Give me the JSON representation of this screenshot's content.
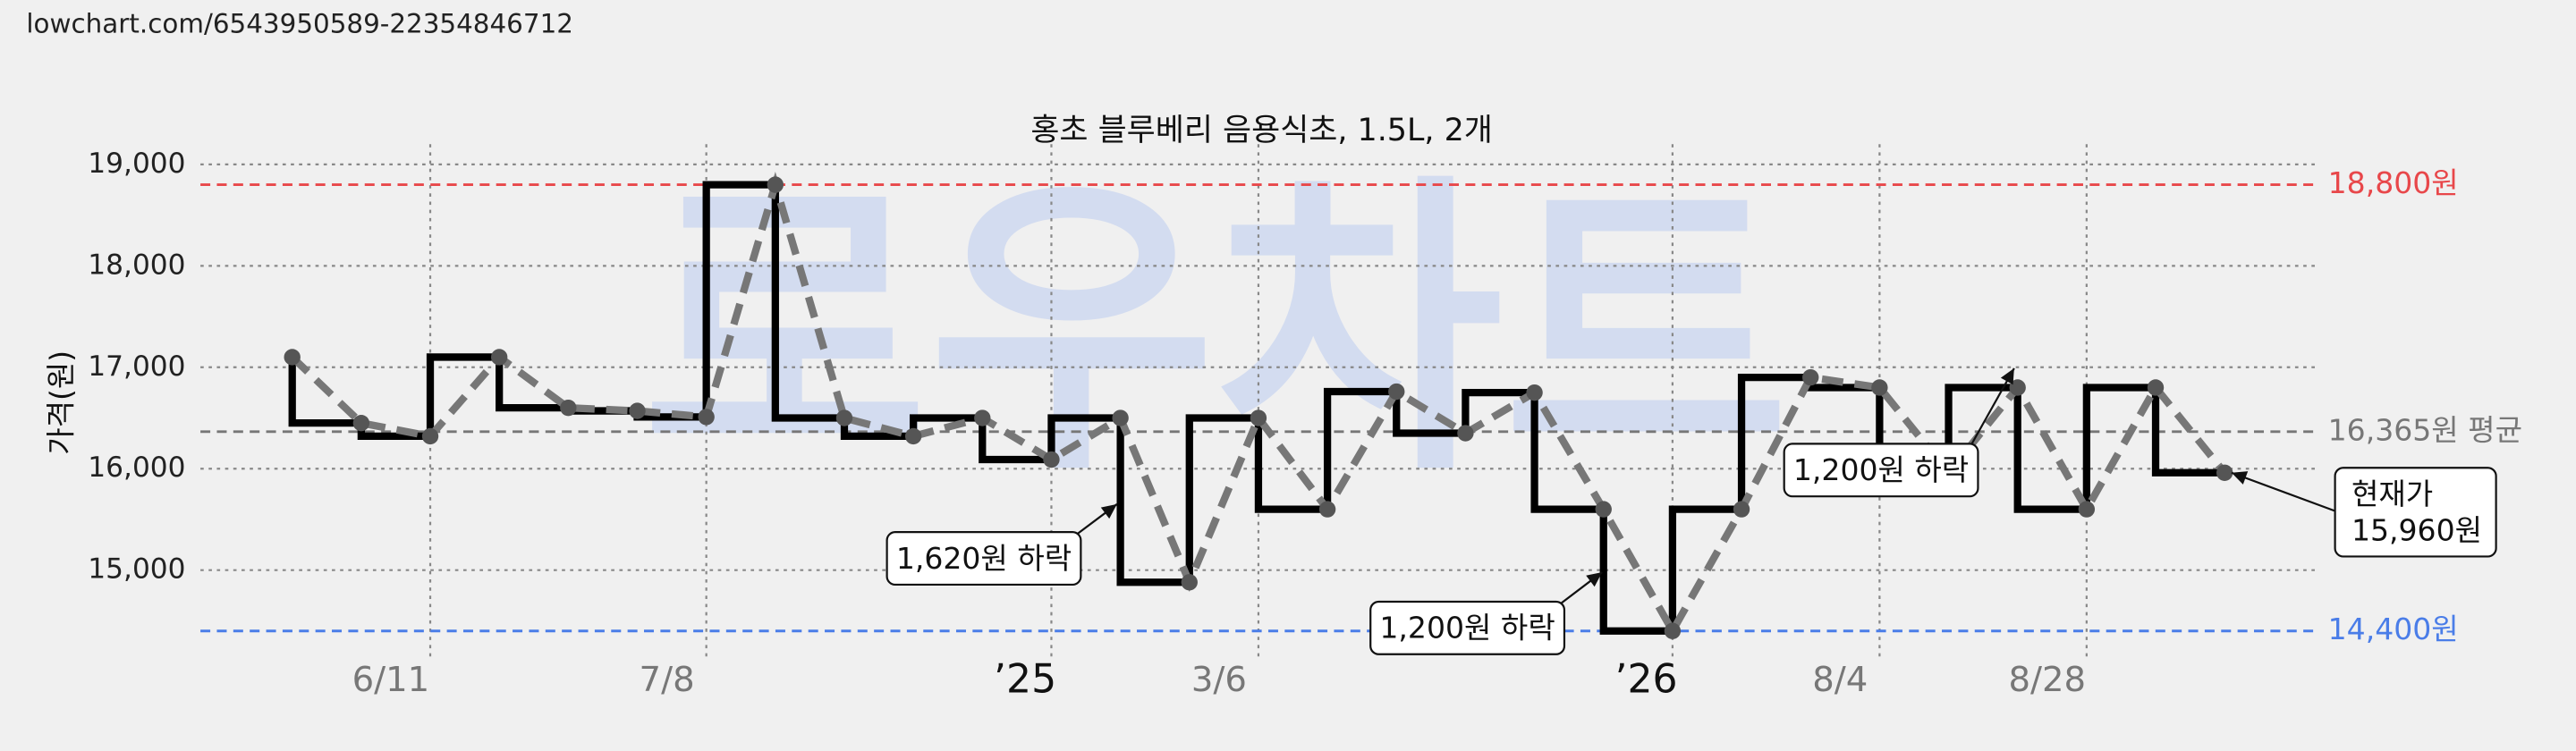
{
  "url": "lowchart.com/6543950589-22354846712",
  "chart_data": {
    "type": "line",
    "title": "홍초 블루베리 음용식초, 1.5L, 2개",
    "y_label": "가격(원)",
    "watermark": "로우차트",
    "x": [
      0,
      1,
      2,
      3,
      4,
      5,
      6,
      7,
      8,
      9,
      10,
      11,
      12,
      13,
      14,
      15,
      16,
      17,
      18,
      19,
      20,
      21,
      22,
      23,
      24,
      25,
      26,
      27,
      28
    ],
    "series": [
      {
        "color": "#000000",
        "point_color": "#555555",
        "dash_color": "#777777",
        "values": [
          17100,
          16450,
          16320,
          17100,
          16600,
          16570,
          16510,
          18800,
          16500,
          16320,
          16500,
          16090,
          16500,
          14880,
          16500,
          15600,
          16760,
          16350,
          16750,
          15600,
          14400,
          15600,
          16900,
          16800,
          15960,
          16800,
          15600,
          16800,
          15960
        ]
      }
    ],
    "xlim": [
      -1.33,
      29.33
    ],
    "xticks": [
      {
        "value": 2,
        "label": "6/11"
      },
      {
        "value": 6,
        "label": "7/8"
      },
      {
        "value": 11,
        "label": "’25"
      },
      {
        "value": 14,
        "label": "3/6"
      },
      {
        "value": 20,
        "label": "’26"
      },
      {
        "value": 23,
        "label": "8/4"
      },
      {
        "value": 26,
        "label": "8/28"
      }
    ],
    "ylim": [
      14100,
      19200
    ],
    "yticks": [
      {
        "value": 15000,
        "label": "15,000"
      },
      {
        "value": 16000,
        "label": "16,000"
      },
      {
        "value": 17000,
        "label": "17,000"
      },
      {
        "value": 18000,
        "label": "18,000"
      },
      {
        "value": 19000,
        "label": "19,000"
      }
    ],
    "grid": true,
    "reference_lines": [
      {
        "value": 18800,
        "label": "18,800원",
        "color": "#e8474a"
      },
      {
        "value": 16365,
        "label": "16,365원 평균",
        "color": "#777777"
      },
      {
        "value": 14400,
        "label": "14,400원",
        "color": "#4a7de8"
      }
    ],
    "annotations": [
      {
        "lines": [
          "1,620원 하락"
        ],
        "x": 11.95,
        "y": 15650
      },
      {
        "lines": [
          "1,200원 하락"
        ],
        "x": 18.98,
        "y": 14980
      },
      {
        "lines": [
          "1,200원 하락"
        ],
        "x": 24.95,
        "y": 16990
      },
      {
        "lines": [
          "현재가",
          "15,960원"
        ],
        "x": 28.1,
        "y": 15960
      }
    ]
  }
}
